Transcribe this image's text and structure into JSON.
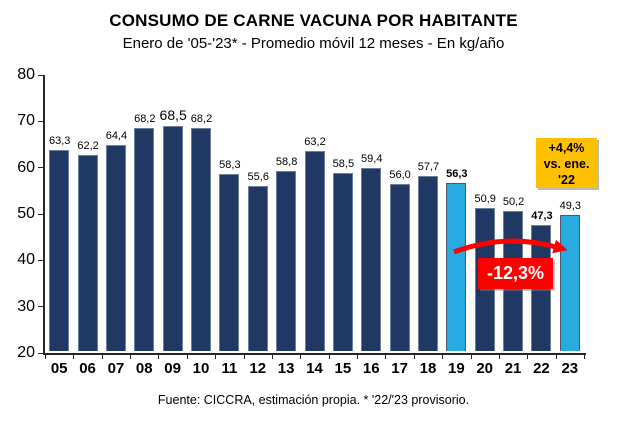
{
  "title": "CONSUMO DE CARNE VACUNA POR HABITANTE",
  "subtitle": "Enero de '05-'23* - Promedio móvil 12 meses -  En kg/año",
  "footer": "Fuente: CICCRA, estimación propia. * '22/'23 provisorio.",
  "chart_data": {
    "type": "bar",
    "title": "CONSUMO DE CARNE VACUNA POR HABITANTE",
    "subtitle": "Enero de '05-'23* - Promedio móvil 12 meses - En kg/año",
    "categories": [
      "05",
      "06",
      "07",
      "08",
      "09",
      "10",
      "11",
      "12",
      "13",
      "14",
      "15",
      "16",
      "17",
      "18",
      "19",
      "20",
      "21",
      "22",
      "23"
    ],
    "values": [
      63.3,
      62.2,
      64.4,
      68.2,
      68.5,
      68.2,
      58.3,
      55.6,
      58.8,
      63.2,
      58.5,
      59.4,
      56.0,
      57.7,
      56.3,
      50.9,
      50.2,
      47.3,
      49.3
    ],
    "labels": [
      "63,3",
      "62,2",
      "64,4",
      "68,2",
      "68,5",
      "68,2",
      "58,3",
      "55,6",
      "58,8",
      "63,2",
      "58,5",
      "59,4",
      "56,0",
      "57,7",
      "56,3",
      "50,9",
      "50,2",
      "47,3",
      "49,3"
    ],
    "highlight_indices": [
      14,
      18
    ],
    "bold_label_indices": [
      14,
      17
    ],
    "big_label_index": 4,
    "ylim": [
      20,
      80
    ],
    "yticks": [
      20,
      30,
      40,
      50,
      60,
      70,
      80
    ],
    "grid": false,
    "legend": "none",
    "colors": {
      "bar": "#1F3864",
      "highlight": "#29ABE2",
      "axis": "#262626"
    }
  },
  "annotations": {
    "yellow_box": {
      "lines": [
        "+4,4%",
        "vs. ene.",
        "'22"
      ],
      "bg": "#FFC000"
    },
    "red_box": {
      "label": "-12,3%",
      "bg": "#FF0000"
    },
    "arrow_color": "#FF0000"
  }
}
